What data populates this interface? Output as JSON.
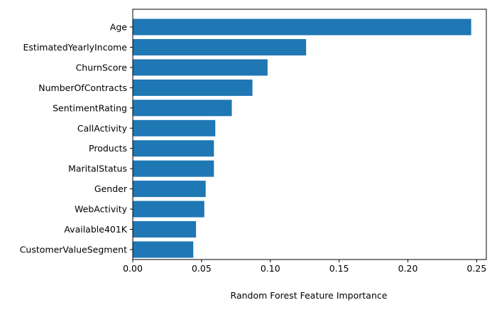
{
  "chart_data": {
    "type": "bar",
    "orientation": "horizontal",
    "title": "",
    "xlabel": "Random Forest Feature Importance",
    "ylabel": "",
    "xlim": [
      0,
      0.257
    ],
    "xticks": [
      0.0,
      0.05,
      0.1,
      0.15,
      0.2,
      0.25
    ],
    "xtick_labels": [
      "0.00",
      "0.05",
      "0.10",
      "0.15",
      "0.20",
      "0.25"
    ],
    "grid": false,
    "bar_color": "#1f77b4",
    "categories": [
      "Age",
      "EstimatedYearlyIncome",
      "ChurnScore",
      "NumberOfContracts",
      "SentimentRating",
      "CallActivity",
      "Products",
      "MaritalStatus",
      "Gender",
      "WebActivity",
      "Available401K",
      "CustomerValueSegment"
    ],
    "values": [
      0.246,
      0.126,
      0.098,
      0.087,
      0.072,
      0.06,
      0.059,
      0.059,
      0.053,
      0.052,
      0.046,
      0.044
    ]
  }
}
